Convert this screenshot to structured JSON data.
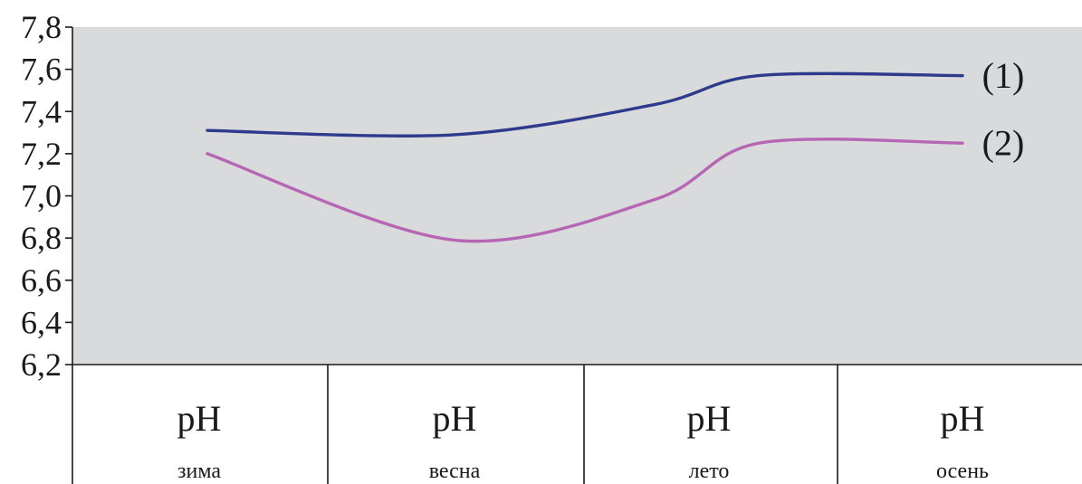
{
  "chart_data": {
    "type": "line",
    "title": "",
    "xlabel": "",
    "ylabel": "",
    "categories": [
      "зима",
      "весна",
      "лето",
      "осень"
    ],
    "category_main_labels": [
      "pH",
      "pH",
      "pH",
      "pH"
    ],
    "ylim": [
      6.2,
      7.8
    ],
    "yticks": [
      6.2,
      6.4,
      6.6,
      6.8,
      7.0,
      7.2,
      7.4,
      7.6,
      7.8
    ],
    "ytick_labels": [
      "6,2",
      "6,4",
      "6,6",
      "6,8",
      "7,0",
      "7,2",
      "7,4",
      "7,6",
      "7,8"
    ],
    "grid": false,
    "plot_background": "#d9dadb",
    "series": [
      {
        "name": "(1)",
        "color": "#2e3a8c",
        "values": [
          7.31,
          7.29,
          7.55,
          7.57
        ]
      },
      {
        "name": "(2)",
        "color": "#b766b5",
        "values": [
          7.2,
          6.79,
          7.14,
          7.25
        ]
      }
    ]
  }
}
